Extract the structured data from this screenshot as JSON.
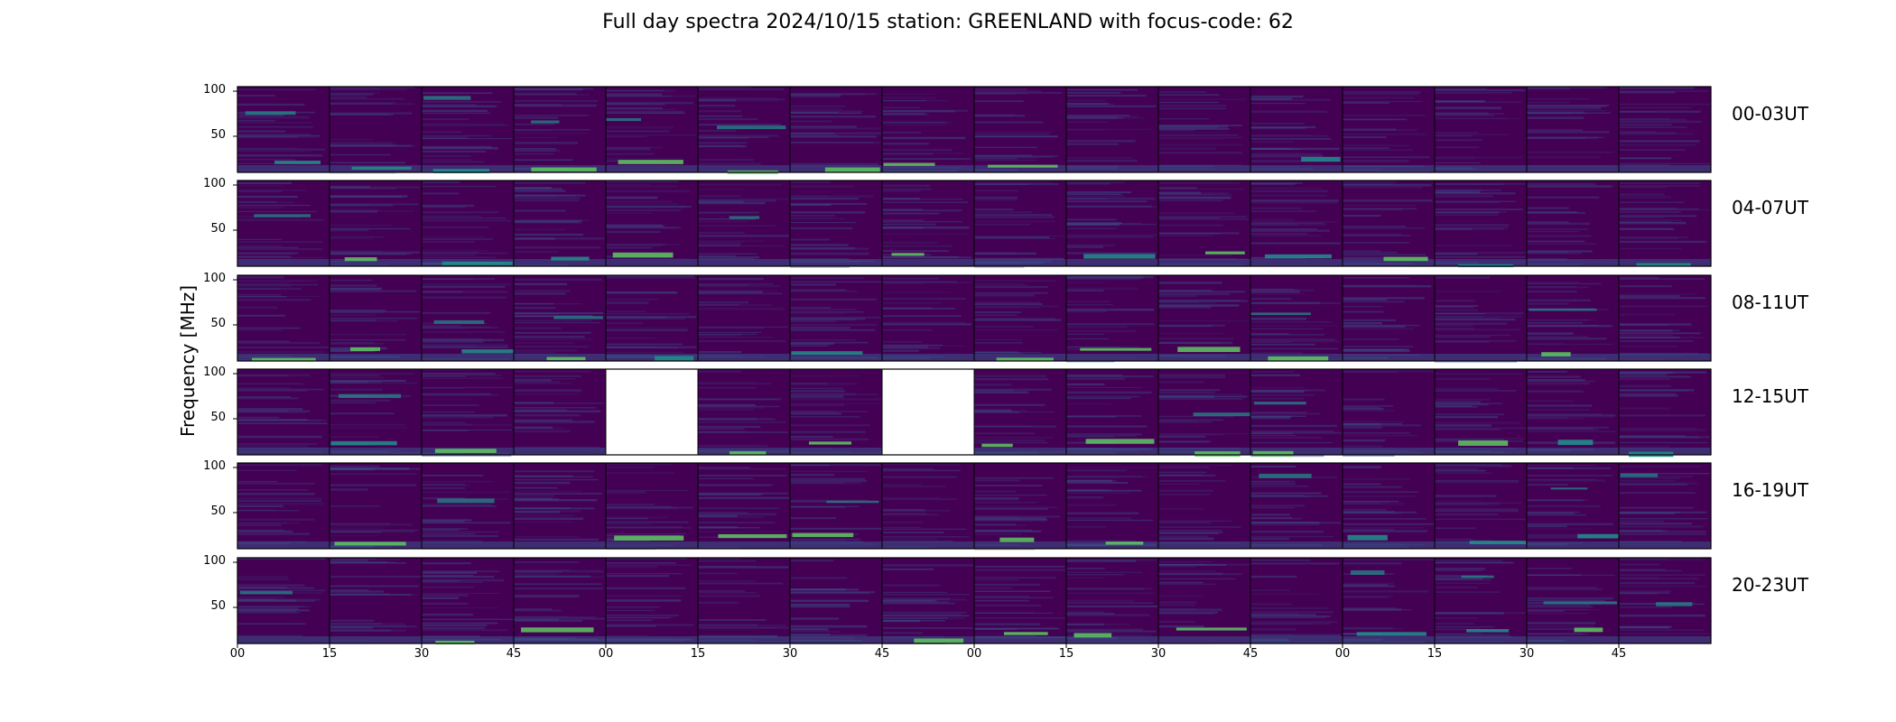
{
  "chart_data": {
    "type": "heatmap",
    "title": "Full day spectra 2024/10/15 station: GREENLAND with focus-code: 62",
    "ylabel": "Frequency [MHz]",
    "ylim": [
      10,
      105
    ],
    "yticks": [
      "100",
      "50"
    ],
    "xticks": [
      "00",
      "15",
      "30",
      "45",
      "00",
      "15",
      "30",
      "45",
      "00",
      "15",
      "30",
      "45",
      "00",
      "15",
      "30",
      "45"
    ],
    "rows": [
      "00-03UT",
      "04-07UT",
      "08-11UT",
      "12-15UT",
      "16-19UT",
      "20-23UT"
    ],
    "panels_per_row": 16,
    "missing_panels": [
      {
        "row": 3,
        "col": 4
      },
      {
        "row": 3,
        "col": 7
      }
    ],
    "colormap": [
      "#440154",
      "#3b528b",
      "#21918c",
      "#5ec962"
    ]
  }
}
